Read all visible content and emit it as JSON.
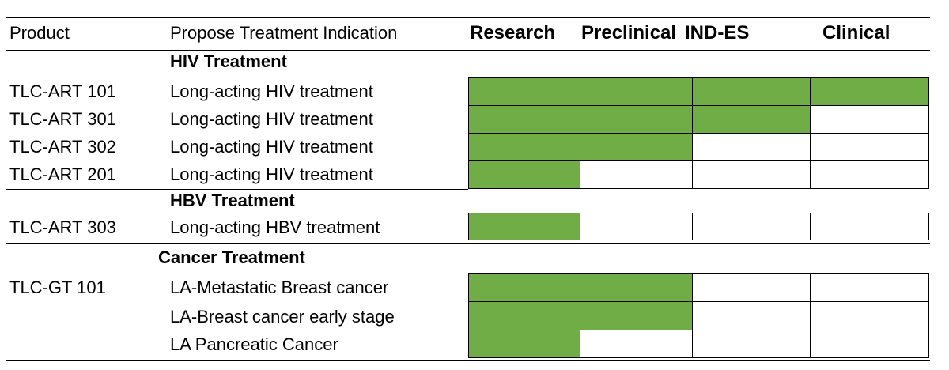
{
  "header": {
    "product": "Product",
    "indication": "Propose Treatment Indication",
    "stages": [
      "Research",
      "Preclinical",
      "IND-ES",
      "Clinical"
    ]
  },
  "colors": {
    "progress_fill": "#70ad47",
    "empty": "#ffffff",
    "border": "#000000"
  },
  "groups": [
    {
      "title": "HIV Treatment"
    },
    {
      "title": "HBV Treatment"
    },
    {
      "title": "Cancer Treatment"
    }
  ],
  "rows": [
    {
      "product": "TLC-ART 101",
      "indication": "Long-acting HIV treatment",
      "stages_completed": 4
    },
    {
      "product": "TLC-ART 301",
      "indication": "Long-acting HIV treatment",
      "stages_completed": 3
    },
    {
      "product": "TLC-ART 302",
      "indication": "Long-acting HIV treatment",
      "stages_completed": 2
    },
    {
      "product": "TLC-ART 201",
      "indication": "Long-acting HIV treatment",
      "stages_completed": 1
    },
    {
      "product": "TLC-ART 303",
      "indication": "Long-acting HBV treatment",
      "stages_completed": 1
    },
    {
      "product": "TLC-GT 101",
      "indication": "LA-Metastatic Breast cancer",
      "stages_completed": 2
    },
    {
      "product": "",
      "indication": "LA-Breast cancer early stage",
      "stages_completed": 2
    },
    {
      "product": "",
      "indication": "LA Pancreatic Cancer",
      "stages_completed": 1
    }
  ]
}
